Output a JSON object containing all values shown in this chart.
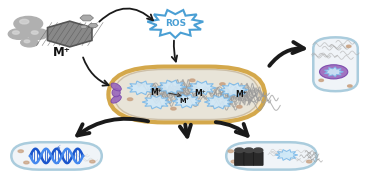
{
  "background_color": "#ffffff",
  "figsize": [
    3.77,
    1.89
  ],
  "dpi": 100,
  "bacterium_fill": "#f5e6c8",
  "bacterium_edge": "#d4a84b",
  "bacterium_inner_fill": "#ede8dc",
  "ros_text": "ROS",
  "ros_color": "#4a9fd4",
  "mplus_label": "M⁺",
  "arrow_color": "#1a1a1a",
  "spike_color": "#7ab8e8",
  "pump_color": "#9966bb",
  "dna_color1": "#1a55cc",
  "dna_color2": "#4488ee",
  "sat_bact_fill": "#f0f4f8",
  "sat_bact_edge": "#aaccdd",
  "chr_color": "#aaaaaa",
  "dot_color": "#c8a080"
}
